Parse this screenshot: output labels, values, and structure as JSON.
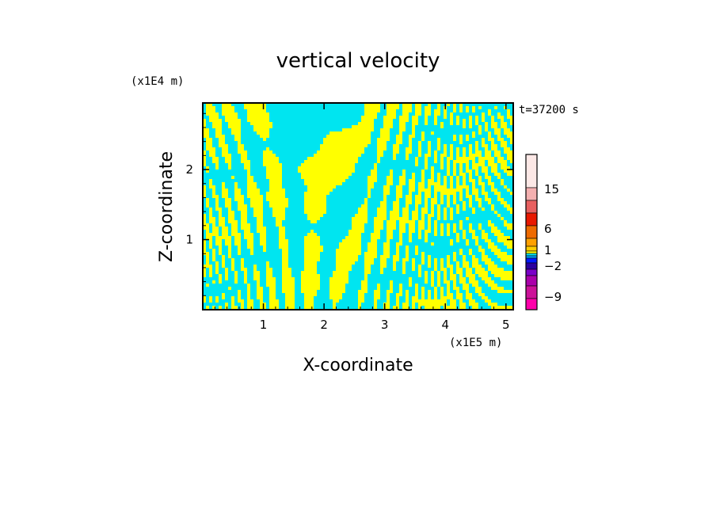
{
  "chart_data": {
    "type": "heatmap",
    "title": "vertical velocity",
    "xlabel": "X-coordinate",
    "ylabel": "Z-coordinate",
    "x_scale_label": "(x1E5 m)",
    "y_scale_label": "(x1E4 m)",
    "time_label": "t=37200 s",
    "xlim": [
      0,
      5.12
    ],
    "ylim": [
      0,
      2.95
    ],
    "xticks": [
      "1",
      "2",
      "3",
      "4",
      "5"
    ],
    "yticks": [
      "1",
      "2"
    ],
    "xtick_values": [
      1,
      2,
      3,
      4,
      5
    ],
    "ytick_values": [
      1,
      2
    ],
    "field_colors": {
      "updraft": "#ffff00",
      "downdraft": "#00e5f0"
    },
    "colorbar": {
      "levels": [
        {
          "color": "#ff00aa"
        },
        {
          "color": "#cc1299"
        },
        {
          "color": "#aa00aa"
        },
        {
          "color": "#7a00c8"
        },
        {
          "color": "#2a00a0"
        },
        {
          "color": "#0018ff"
        },
        {
          "color": "#00a0ff"
        },
        {
          "color": "#00e5f0"
        },
        {
          "color": "#ffff00"
        },
        {
          "color": "#ffcc00"
        },
        {
          "color": "#ffa000"
        },
        {
          "color": "#ee6a00"
        },
        {
          "color": "#e81800"
        },
        {
          "color": "#e86060"
        },
        {
          "color": "#f4b0b0"
        },
        {
          "color": "#fce8e6"
        }
      ],
      "tick_labels": [
        "15",
        "6",
        "1",
        "−2",
        "−9"
      ]
    }
  }
}
